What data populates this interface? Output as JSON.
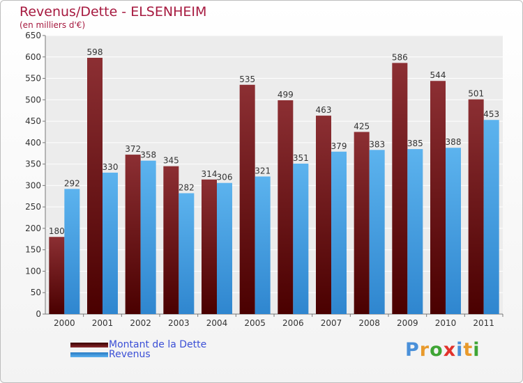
{
  "chart_data": {
    "type": "bar",
    "title": "Revenus/Dette - ELSENHEIM",
    "subtitle": "(en milliers d'€)",
    "categories": [
      "2000",
      "2001",
      "2002",
      "2003",
      "2004",
      "2005",
      "2006",
      "2007",
      "2008",
      "2009",
      "2010",
      "2011"
    ],
    "series": [
      {
        "name": "Montant de la Dette",
        "color": "#7a1f23",
        "values": [
          180,
          598,
          372,
          345,
          314,
          535,
          499,
          463,
          425,
          586,
          544,
          501
        ]
      },
      {
        "name": "Revenus",
        "color": "#4aa3e6",
        "values": [
          292,
          330,
          358,
          282,
          306,
          321,
          351,
          379,
          383,
          385,
          388,
          453
        ]
      }
    ],
    "ylim": [
      0,
      650
    ],
    "yticks": [
      0,
      50,
      100,
      150,
      200,
      250,
      300,
      350,
      400,
      450,
      500,
      550,
      600,
      650
    ],
    "grid": true,
    "legend_position": "bottom-left"
  },
  "branding": {
    "logo_letters": [
      "P",
      "r",
      "o",
      "x",
      "i",
      "t",
      "i"
    ],
    "logo_colors": [
      "#4a90d9",
      "#e89a2c",
      "#3fa535",
      "#e2322b",
      "#4a90d9",
      "#e89a2c",
      "#3fa535"
    ]
  }
}
